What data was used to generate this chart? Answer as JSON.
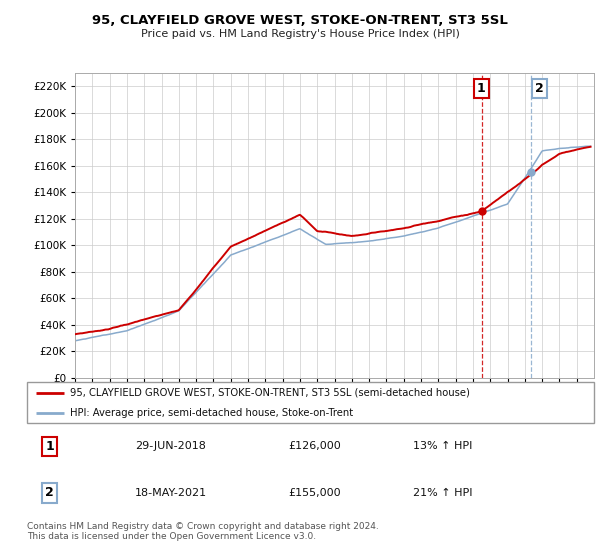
{
  "title": "95, CLAYFIELD GROVE WEST, STOKE-ON-TRENT, ST3 5SL",
  "subtitle": "Price paid vs. HM Land Registry's House Price Index (HPI)",
  "ylabel_ticks": [
    "£0",
    "£20K",
    "£40K",
    "£60K",
    "£80K",
    "£100K",
    "£120K",
    "£140K",
    "£160K",
    "£180K",
    "£200K",
    "£220K"
  ],
  "ytick_values": [
    0,
    20000,
    40000,
    60000,
    80000,
    100000,
    120000,
    140000,
    160000,
    180000,
    200000,
    220000
  ],
  "ylim": [
    0,
    230000
  ],
  "xlim_start": 1995,
  "xlim_end": 2025,
  "red_line_color": "#cc0000",
  "blue_line_color": "#88aacc",
  "marker1_x": 2018.5,
  "marker1_y": 126000,
  "marker2_x": 2021.37,
  "marker2_y": 155000,
  "dashed1_color": "#cc0000",
  "dashed2_color": "#88aacc",
  "legend_line1": "95, CLAYFIELD GROVE WEST, STOKE-ON-TRENT, ST3 5SL (semi-detached house)",
  "legend_line2": "HPI: Average price, semi-detached house, Stoke-on-Trent",
  "annotation1_label": "1",
  "annotation1_date": "29-JUN-2018",
  "annotation1_price": "£126,000",
  "annotation1_hpi": "13% ↑ HPI",
  "annotation2_label": "2",
  "annotation2_date": "18-MAY-2021",
  "annotation2_price": "£155,000",
  "annotation2_hpi": "21% ↑ HPI",
  "footer": "Contains HM Land Registry data © Crown copyright and database right 2024.\nThis data is licensed under the Open Government Licence v3.0.",
  "grid_color": "#cccccc",
  "box1_color": "#cc0000",
  "box2_color": "#88aacc"
}
